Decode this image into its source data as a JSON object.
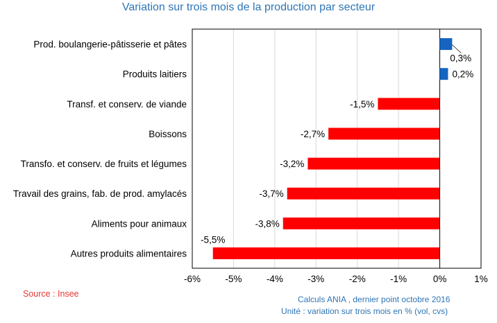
{
  "chart_data": {
    "type": "bar",
    "orientation": "horizontal",
    "title": "Variation sur trois mois de la production par secteur",
    "categories": [
      "Prod.  boulangerie-pâtisserie et  pâtes",
      "Produits laitiers",
      "Transf. et conserv. de viande",
      "Boissons",
      "Transfo. et conserv. de fruits et légumes",
      "Travail des grains, fab. de prod. amylacés",
      "Aliments pour animaux",
      "Autres produits alimentaires"
    ],
    "values": [
      0.3,
      0.2,
      -1.5,
      -2.7,
      -3.2,
      -3.7,
      -3.8,
      -5.5
    ],
    "data_labels": [
      "0,3%",
      "0,2%",
      "-1,5%",
      "-2,7%",
      "-3,2%",
      "-3,7%",
      "-3,8%",
      "-5,5%"
    ],
    "xlim": [
      -6,
      1
    ],
    "x_ticks": [
      -6,
      -5,
      -4,
      -3,
      -2,
      -1,
      0,
      1
    ],
    "x_tick_labels": [
      "-6%",
      "-5%",
      "-4%",
      "-3%",
      "-2%",
      "-1%",
      "0%",
      "1%"
    ],
    "xlabel": "",
    "ylabel": "",
    "grid": "vertical",
    "positive_color": "#1565c0",
    "negative_color": "#ff0000"
  },
  "footer": {
    "source": "Source : Insee",
    "note_calc": "Calculs ANIA , dernier point octobre 2016",
    "note_unit": "Unité : variation sur trois mois en % (vol, cvs)"
  },
  "colors": {
    "title": "#2e75b6",
    "source": "#e53935",
    "notes": "#2e75b6",
    "grid": "#d9d9d9"
  }
}
